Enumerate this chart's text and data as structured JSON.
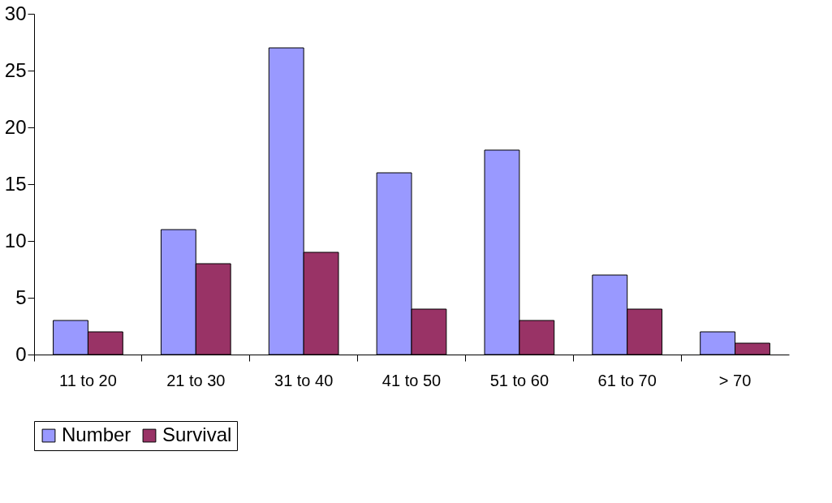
{
  "chart_data": {
    "type": "bar",
    "categories": [
      "11 to 20",
      "21 to 30",
      "31 to 40",
      "41 to 50",
      "51 to 60",
      "61 to 70",
      "> 70"
    ],
    "series": [
      {
        "name": "Number",
        "color": "#9999ff",
        "values": [
          3,
          11,
          27,
          16,
          18,
          7,
          2
        ]
      },
      {
        "name": "Survival",
        "color": "#993366",
        "values": [
          2,
          8,
          9,
          4,
          3,
          4,
          1
        ]
      }
    ],
    "ylim": [
      0,
      30
    ],
    "yticks": [
      0,
      5,
      10,
      15,
      20,
      25,
      30
    ],
    "grid": false,
    "legend": "bottom"
  }
}
